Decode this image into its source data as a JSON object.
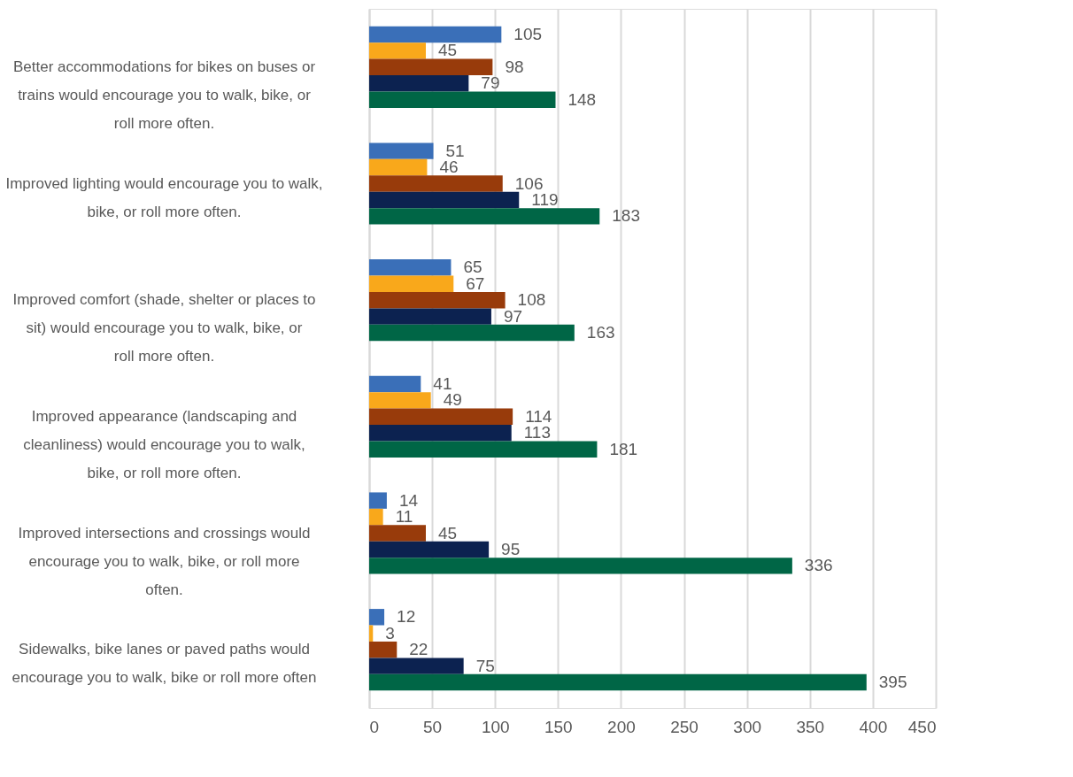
{
  "chart_data": {
    "type": "bar",
    "orientation": "horizontal",
    "categories": [
      "Better accommodations for bikes on buses or trains would encourage you to walk, bike, or roll more often.",
      "Improved lighting would encourage you to walk, bike, or roll more often.",
      "Improved comfort (shade, shelter or places to sit) would encourage you to walk, bike, or roll more often.",
      "Improved appearance (landscaping and cleanliness) would encourage you to walk, bike, or roll more often.",
      "Improved intersections and crossings would encourage you to walk, bike, or roll more often.",
      "Sidewalks, bike lanes or paved paths would encourage you to walk, bike or roll more often"
    ],
    "series": [
      {
        "color": "#3a6fb8",
        "values": [
          105,
          51,
          65,
          41,
          14,
          12
        ]
      },
      {
        "color": "#f9a81b",
        "values": [
          45,
          46,
          67,
          49,
          11,
          3
        ]
      },
      {
        "color": "#983b0b",
        "values": [
          98,
          106,
          108,
          114,
          45,
          22
        ]
      },
      {
        "color": "#0c2250",
        "values": [
          79,
          119,
          97,
          113,
          95,
          75
        ]
      },
      {
        "color": "#006646",
        "values": [
          148,
          183,
          163,
          181,
          336,
          395
        ]
      }
    ],
    "xlim": [
      0,
      450
    ],
    "xticks": [
      0,
      50,
      100,
      150,
      200,
      250,
      300,
      350,
      400,
      450
    ],
    "grid": "x",
    "data_labels": true,
    "legend": false
  }
}
